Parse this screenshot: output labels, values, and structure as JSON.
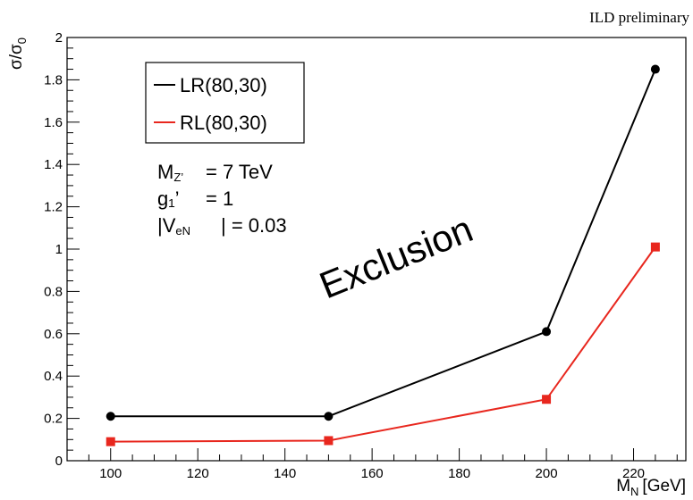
{
  "chart_data": {
    "type": "line",
    "top_label": "ILD preliminary",
    "xlabel": "M",
    "xlabel_sub": "N",
    "xlabel_unit": "[GeV]",
    "ylabel": "σ/σ",
    "ylabel_sub": "0",
    "xlim": [
      90,
      232
    ],
    "ylim": [
      0,
      2
    ],
    "x_ticks": [
      100,
      120,
      140,
      160,
      180,
      200,
      220
    ],
    "y_ticks": [
      0,
      0.2,
      0.4,
      0.6,
      0.8,
      1,
      1.2,
      1.4,
      1.6,
      1.8,
      2
    ],
    "grid": false,
    "legend_position": "top-left",
    "series": [
      {
        "name": "LR(80,30)",
        "color": "#000000",
        "marker": "circle",
        "x": [
          100,
          150,
          200,
          225
        ],
        "y": [
          0.21,
          0.21,
          0.61,
          1.85
        ]
      },
      {
        "name": "RL(80,30)",
        "color": "#e8271e",
        "marker": "square",
        "x": [
          100,
          150,
          200,
          225
        ],
        "y": [
          0.09,
          0.095,
          0.29,
          1.01
        ]
      }
    ],
    "parameters": [
      {
        "symbol": "M",
        "sub": "Z’",
        "value": "= 7 TeV"
      },
      {
        "symbol": "g₁’",
        "sub": "",
        "value": "= 1"
      },
      {
        "symbol": "|V",
        "sub": "eN",
        "value": "| = 0.03"
      }
    ],
    "annotation": "Exclusion"
  }
}
